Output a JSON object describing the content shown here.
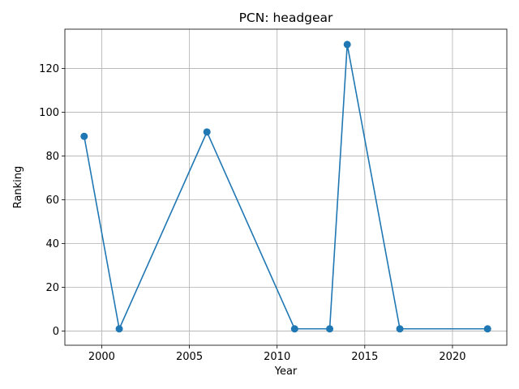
{
  "chart_data": {
    "type": "line",
    "title": "PCN: headgear",
    "xlabel": "Year",
    "ylabel": "Ranking",
    "xlim": [
      1997.9,
      2023.1
    ],
    "ylim": [
      -6.5,
      138
    ],
    "x_ticks": [
      2000,
      2005,
      2010,
      2015,
      2020
    ],
    "y_ticks": [
      0,
      20,
      40,
      60,
      80,
      100,
      120
    ],
    "grid": true,
    "series": [
      {
        "color": "#1f77b4",
        "marker": "circle",
        "x": [
          1999,
          2001,
          2006,
          2011,
          2013,
          2014,
          2017,
          2022
        ],
        "y": [
          89,
          1,
          91,
          1,
          1,
          131,
          1,
          1
        ]
      }
    ]
  }
}
